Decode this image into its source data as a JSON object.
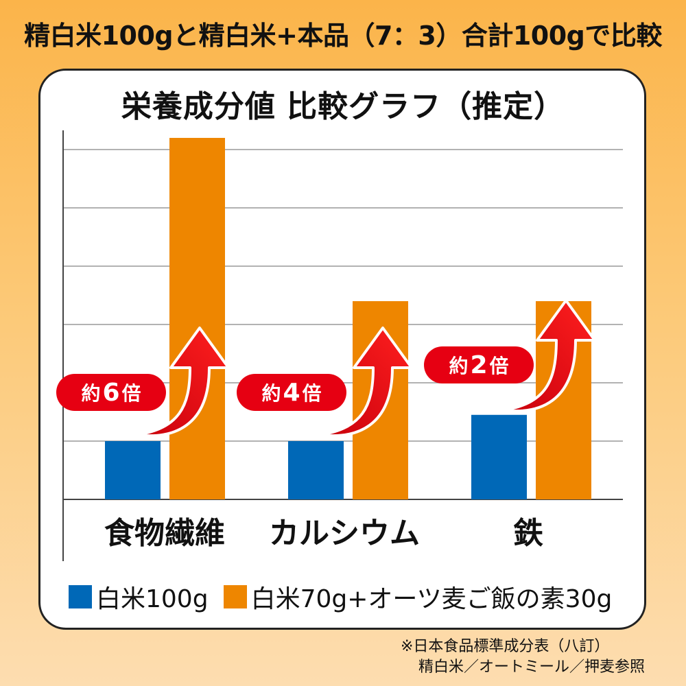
{
  "header": {
    "caption": "精白米100gと精白米+本品（7：3）合計100gで比較"
  },
  "chart_data": {
    "type": "bar",
    "title": "栄養成分値 比較グラフ（推定）",
    "categories": [
      "食物繊維",
      "カルシウム",
      "鉄"
    ],
    "series": [
      {
        "name": "白米100g",
        "color": "#0068b7",
        "values": [
          1,
          1,
          1.45
        ]
      },
      {
        "name": "白米70g+オーツ麦ご飯の素30g",
        "color": "#ee8600",
        "values": [
          6.2,
          3.4,
          3.4
        ]
      }
    ],
    "ylim": [
      0,
      6.2
    ],
    "grid": true,
    "xlabel": "",
    "ylabel": "",
    "annotations": [
      {
        "prefix": "約",
        "number": "6",
        "suffix": "倍"
      },
      {
        "prefix": "約",
        "number": "4",
        "suffix": "倍"
      },
      {
        "prefix": "約",
        "number": "2",
        "suffix": "倍"
      }
    ],
    "annotation_color": "#e60012"
  },
  "legend": {
    "items": [
      {
        "label": "白米100g"
      },
      {
        "label": "白米70g+オーツ麦ご飯の素30g"
      }
    ]
  },
  "footnote": {
    "line1": "※日本食品標準成分表（八訂）",
    "line2": "精白米／オートミール／押麦参照"
  }
}
